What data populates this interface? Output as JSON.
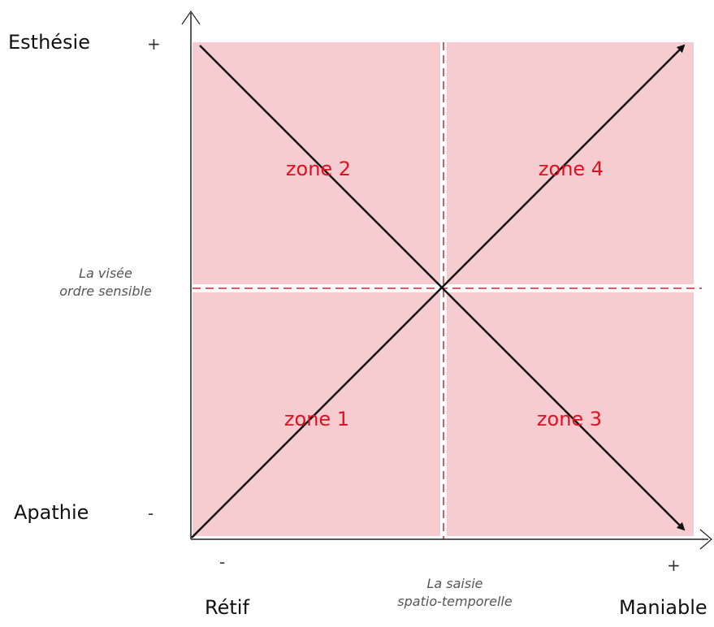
{
  "y_axis": {
    "top_label": "Esthésie",
    "bottom_label": "Apathie",
    "plus_sign": "+",
    "minus_sign": "-",
    "title_line1": "La visée",
    "title_line2": "ordre sensible"
  },
  "x_axis": {
    "left_label": "Rétif",
    "right_label": "Maniable",
    "minus_sign": "-",
    "plus_sign": "+",
    "title_line1": "La saisie",
    "title_line2": "spatio-temporelle"
  },
  "zones": [
    {
      "label": "zone 2"
    },
    {
      "label": "zone 4"
    },
    {
      "label": "zone 1"
    },
    {
      "label": "zone 3"
    }
  ],
  "colors": {
    "quadrant_fill": "#f6ccd1",
    "zone_text": "#e0101f",
    "divider": "#c8282d",
    "axis": "#222222"
  }
}
